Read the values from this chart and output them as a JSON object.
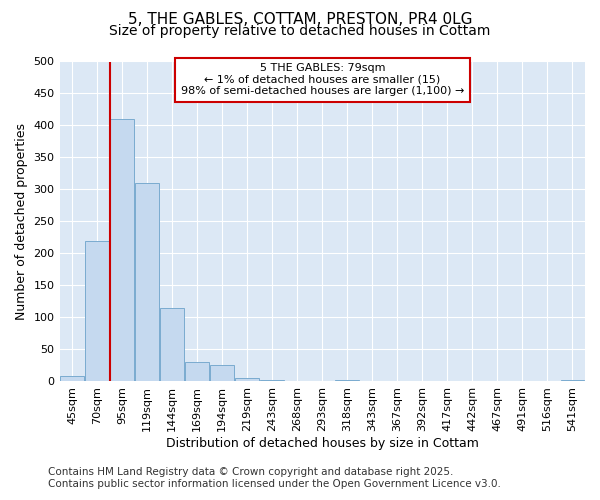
{
  "title1": "5, THE GABLES, COTTAM, PRESTON, PR4 0LG",
  "title2": "Size of property relative to detached houses in Cottam",
  "xlabel": "Distribution of detached houses by size in Cottam",
  "ylabel": "Number of detached properties",
  "categories": [
    "45sqm",
    "70sqm",
    "95sqm",
    "119sqm",
    "144sqm",
    "169sqm",
    "194sqm",
    "219sqm",
    "243sqm",
    "268sqm",
    "293sqm",
    "318sqm",
    "343sqm",
    "367sqm",
    "392sqm",
    "417sqm",
    "442sqm",
    "467sqm",
    "491sqm",
    "516sqm",
    "541sqm"
  ],
  "values": [
    8,
    220,
    410,
    310,
    115,
    30,
    25,
    6,
    2,
    0,
    0,
    2,
    0,
    0,
    0,
    0,
    0,
    0,
    0,
    0,
    2
  ],
  "bar_color": "#c5d9ef",
  "bar_edge_color": "#7aabcf",
  "vline_x": 1.5,
  "vline_color": "#cc0000",
  "annotation_line1": "5 THE GABLES: 79sqm",
  "annotation_line2": "← 1% of detached houses are smaller (15)",
  "annotation_line3": "98% of semi-detached houses are larger (1,100) →",
  "annotation_box_color": "#ffffff",
  "annotation_box_edge_color": "#cc0000",
  "ylim": [
    0,
    500
  ],
  "yticks": [
    0,
    50,
    100,
    150,
    200,
    250,
    300,
    350,
    400,
    450,
    500
  ],
  "fig_background_color": "#ffffff",
  "ax_background_color": "#dce8f5",
  "grid_color": "#ffffff",
  "footer1": "Contains HM Land Registry data © Crown copyright and database right 2025.",
  "footer2": "Contains public sector information licensed under the Open Government Licence v3.0.",
  "title1_fontsize": 11,
  "title2_fontsize": 10,
  "axis_label_fontsize": 9,
  "tick_fontsize": 8,
  "annotation_fontsize": 8,
  "footer_fontsize": 7.5
}
